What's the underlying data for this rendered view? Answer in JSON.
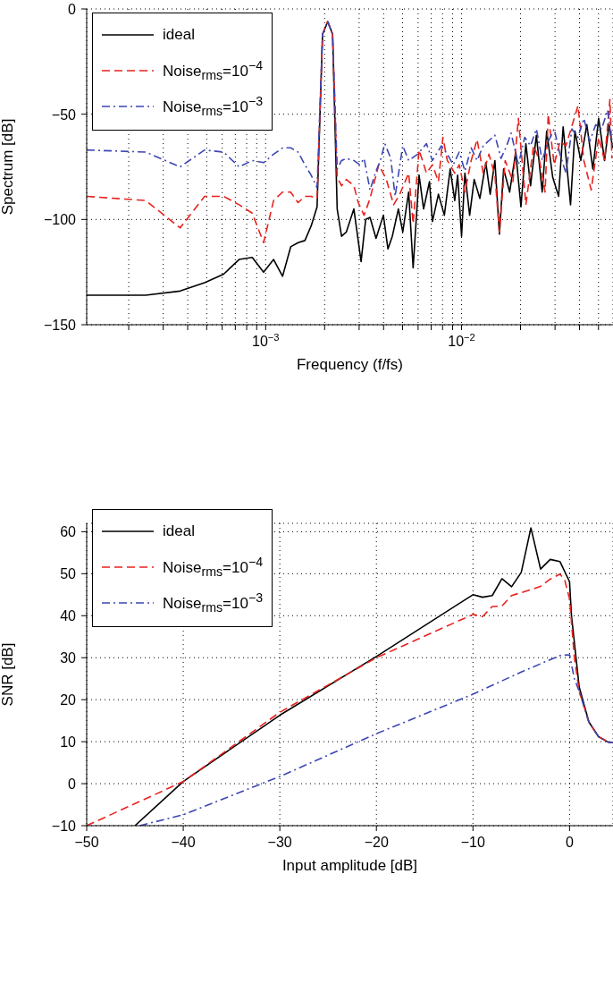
{
  "chart_data": [
    {
      "type": "line",
      "xlabel": "Frequency (f/fs)",
      "ylabel": "Spectrum [dB]",
      "log": "x",
      "grid": true,
      "legend": "top left",
      "xlim": [
        0.000122,
        0.0593
      ],
      "ylim": [
        -150,
        0
      ],
      "xticks": [
        {
          "value": 0.0002,
          "label": null
        },
        {
          "value": 0.0003,
          "label": null
        },
        {
          "value": 0.0004,
          "label": null
        },
        {
          "value": 0.0005,
          "label": null
        },
        {
          "value": 0.0006,
          "label": null
        },
        {
          "value": 0.0007,
          "label": null
        },
        {
          "value": 0.0008,
          "label": null
        },
        {
          "value": 0.0009,
          "label": null
        },
        {
          "value": 0.001,
          "label": "10$^{−3}$"
        },
        {
          "value": 0.002,
          "label": null
        },
        {
          "value": 0.003,
          "label": null
        },
        {
          "value": 0.004,
          "label": null
        },
        {
          "value": 0.005,
          "label": null
        },
        {
          "value": 0.006,
          "label": null
        },
        {
          "value": 0.007,
          "label": null
        },
        {
          "value": 0.008,
          "label": null
        },
        {
          "value": 0.009,
          "label": null
        },
        {
          "value": 0.01,
          "label": "10$^{−2}$"
        },
        {
          "value": 0.02,
          "label": null
        },
        {
          "value": 0.03,
          "label": null
        },
        {
          "value": 0.04,
          "label": null
        },
        {
          "value": 0.05,
          "label": null
        }
      ],
      "yticks": [
        {
          "value": -150,
          "label": "−150"
        },
        {
          "value": -100,
          "label": "−100"
        },
        {
          "value": -50,
          "label": "−50"
        },
        0
      ],
      "series": [
        {
          "name": "ideal",
          "color": "#000000",
          "line_style": "solid",
          "x": [
            0.000122,
            0.000244,
            0.000366,
            0.000488,
            0.00061,
            0.000732,
            0.000854,
            0.000976,
            0.001098,
            0.00122,
            0.001342,
            0.001464,
            0.001586,
            0.001708,
            0.00183,
            0.001952,
            0.002074,
            0.002196,
            0.002318,
            0.00244,
            0.00258,
            0.00282,
            0.00307,
            0.00324,
            0.00341,
            0.00366,
            0.00399,
            0.00421,
            0.00443,
            0.00476,
            0.00501,
            0.00537,
            0.00566,
            0.00607,
            0.0064,
            0.00686,
            0.0071,
            0.00762,
            0.00817,
            0.00875,
            0.00923,
            0.00955,
            0.01,
            0.0104,
            0.011,
            0.0116,
            0.0124,
            0.0133,
            0.014,
            0.0148,
            0.0156,
            0.0164,
            0.0176,
            0.0189,
            0.0201,
            0.0213,
            0.0225,
            0.0241,
            0.0258,
            0.0272,
            0.0292,
            0.0313,
            0.033,
            0.036,
            0.0379,
            0.0406,
            0.0436,
            0.0468,
            0.0501,
            0.0537,
            0.0566,
            0.059
          ],
          "values": [
            -136,
            -136,
            -134,
            -130,
            -126,
            -119,
            -118,
            -125,
            -119,
            -127,
            -113,
            -111,
            -110,
            -103,
            -94,
            -12,
            -6,
            -12,
            -95,
            -108,
            -106,
            -95,
            -120,
            -100,
            -99,
            -109,
            -98,
            -114,
            -108,
            -95,
            -106,
            -87,
            -123,
            -79,
            -95,
            -82,
            -101,
            -88,
            -98,
            -76,
            -91,
            -79,
            -108,
            -78,
            -98,
            -81,
            -90,
            -73,
            -88,
            -72,
            -107,
            -76,
            -87,
            -68,
            -94,
            -64,
            -84,
            -60,
            -87,
            -58,
            -80,
            -89,
            -56,
            -93,
            -58,
            -72,
            -55,
            -76,
            -52,
            -72,
            -55,
            -66
          ]
        },
        {
          "name": "Noise$_{rms}$=10$^{−4}$",
          "color": "#e8231f",
          "line_style": "dashed",
          "x": [
            0.000122,
            0.000244,
            0.000366,
            0.000488,
            0.00061,
            0.000732,
            0.000854,
            0.000976,
            0.001098,
            0.00122,
            0.001342,
            0.001464,
            0.001586,
            0.001708,
            0.00183,
            0.001952,
            0.002074,
            0.002196,
            0.002318,
            0.00244,
            0.00258,
            0.00282,
            0.00297,
            0.00318,
            0.00341,
            0.00378,
            0.00413,
            0.0045,
            0.00484,
            0.00537,
            0.00566,
            0.00607,
            0.00662,
            0.0071,
            0.00762,
            0.00803,
            0.00846,
            0.00923,
            0.00973,
            0.0104,
            0.0112,
            0.012,
            0.0129,
            0.0138,
            0.0148,
            0.0156,
            0.0167,
            0.0183,
            0.0195,
            0.0213,
            0.0233,
            0.025,
            0.0267,
            0.0277,
            0.0297,
            0.0318,
            0.0341,
            0.0393,
            0.0421,
            0.0459,
            0.0501,
            0.0537,
            0.0572,
            0.0586
          ],
          "values": [
            -89,
            -91,
            -104,
            -89,
            -89,
            -93,
            -97,
            -111,
            -91,
            -87,
            -87,
            -92,
            -89,
            -89,
            -90,
            -12,
            -6,
            -12,
            -80,
            -84,
            -81,
            -84,
            -92,
            -98,
            -90,
            -74,
            -81,
            -93,
            -88,
            -78,
            -102,
            -67,
            -78,
            -74,
            -82,
            -61,
            -72,
            -78,
            -74,
            -87,
            -72,
            -62,
            -78,
            -69,
            -79,
            -106,
            -72,
            -82,
            -52,
            -93,
            -65,
            -72,
            -87,
            -50,
            -74,
            -63,
            -65,
            -46,
            -72,
            -86,
            -61,
            -72,
            -43,
            -71
          ]
        },
        {
          "name": "Noise$_{rms}$=10$^{−3}$",
          "color": "#3c46b4",
          "line_style": "dashdot",
          "x": [
            0.000122,
            0.000244,
            0.000366,
            0.000488,
            0.00061,
            0.000732,
            0.000854,
            0.000976,
            0.001098,
            0.00122,
            0.001342,
            0.001464,
            0.001586,
            0.001708,
            0.00183,
            0.001952,
            0.002074,
            0.002196,
            0.002318,
            0.00244,
            0.00258,
            0.00282,
            0.00302,
            0.00318,
            0.00341,
            0.00366,
            0.00385,
            0.00406,
            0.00435,
            0.00458,
            0.00501,
            0.00537,
            0.00597,
            0.00662,
            0.0071,
            0.00789,
            0.00846,
            0.00907,
            0.00973,
            0.0104,
            0.0112,
            0.012,
            0.0129,
            0.0148,
            0.0159,
            0.017,
            0.0179,
            0.0195,
            0.021,
            0.0225,
            0.0241,
            0.0258,
            0.0277,
            0.0297,
            0.0318,
            0.0341,
            0.0366,
            0.0393,
            0.0421,
            0.0451,
            0.0484,
            0.0519,
            0.0557,
            0.0586
          ],
          "values": [
            -67,
            -68,
            -75,
            -67,
            -68,
            -75,
            -72,
            -73,
            -69,
            -66,
            -66,
            -68,
            -74,
            -79,
            -85,
            -12,
            -6,
            -12,
            -76,
            -72,
            -71,
            -72,
            -74,
            -71,
            -86,
            -77,
            -72,
            -64,
            -71,
            -89,
            -65,
            -72,
            -69,
            -64,
            -72,
            -65,
            -69,
            -74,
            -68,
            -77,
            -66,
            -72,
            -65,
            -60,
            -71,
            -65,
            -59,
            -74,
            -61,
            -65,
            -57,
            -72,
            -63,
            -57,
            -69,
            -78,
            -57,
            -61,
            -52,
            -63,
            -55,
            -57,
            -48,
            -65
          ]
        }
      ]
    },
    {
      "type": "line",
      "xlabel": "Input amplitude [dB]",
      "ylabel": "SNR [dB]",
      "grid": true,
      "legend": "top left",
      "xlim": [
        -50,
        4.5
      ],
      "ylim": [
        -10,
        62
      ],
      "xticks": [
        {
          "value": -50,
          "label": "−50"
        },
        {
          "value": -40,
          "label": "−40"
        },
        {
          "value": -30,
          "label": "−30"
        },
        {
          "value": -20,
          "label": "−20"
        },
        {
          "value": -10,
          "label": "−10"
        },
        0
      ],
      "yticks": [
        {
          "value": -10,
          "label": "−10"
        },
        0,
        10,
        20,
        30,
        40,
        50,
        60
      ],
      "series": [
        {
          "name": "ideal",
          "color": "#000000",
          "line_style": "solid",
          "x": [
            -45,
            -40,
            -30,
            -20,
            -10,
            -9,
            -8,
            -7,
            -6,
            -5,
            -4,
            -3,
            -2,
            -1,
            0,
            0.2,
            1,
            2,
            3,
            4,
            4.5
          ],
          "values": [
            -10,
            0.5,
            16.3,
            30.3,
            45,
            44.4,
            44.8,
            48.8,
            46.9,
            50.3,
            60.9,
            51.1,
            53.4,
            52.9,
            48.1,
            40,
            23,
            14.7,
            11.2,
            9.9,
            9.8
          ]
        },
        {
          "name": "Noise$_{rms}$=10$^{−4}$",
          "color": "#e8231f",
          "line_style": "dashed",
          "x": [
            -50,
            -40,
            -30,
            -20,
            -10,
            -9,
            -8,
            -7,
            -6,
            -5,
            -4,
            -3,
            -2,
            -1,
            -0.5,
            0,
            0.5,
            1,
            2,
            3,
            4,
            4.5
          ],
          "values": [
            -10,
            0.5,
            17,
            30,
            40.3,
            39.8,
            42.2,
            42.3,
            44.8,
            45.5,
            46.2,
            47,
            48.7,
            49.9,
            48.5,
            44,
            30,
            22,
            14.7,
            11.2,
            9.9,
            9.8
          ]
        },
        {
          "name": "Noise$_{rms}$=10$^{−3}$",
          "color": "#3c46b4",
          "line_style": "dashdot",
          "x": [
            -44.5,
            -40,
            -30,
            -20,
            -10,
            -5,
            -1,
            0,
            0.5,
            1,
            2,
            3,
            4,
            4.5
          ],
          "values": [
            -10,
            -7.4,
            1.7,
            11.9,
            21.3,
            26.6,
            30.5,
            30.7,
            25,
            22,
            14.7,
            11.2,
            9.9,
            9.8
          ]
        }
      ]
    }
  ]
}
